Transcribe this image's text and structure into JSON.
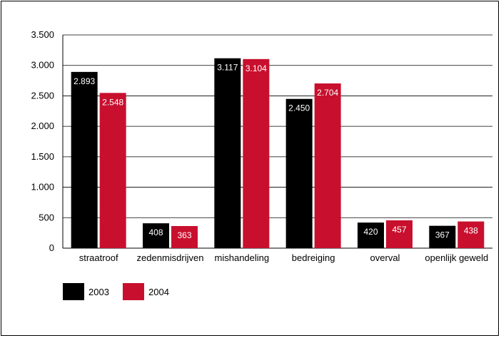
{
  "chart_data": {
    "type": "bar",
    "categories": [
      "straatroof",
      "zedenmisdrijven",
      "mishandeling",
      "bedreiging",
      "overval",
      "openlijk geweld"
    ],
    "series": [
      {
        "name": "2003",
        "values": [
          2893,
          408,
          3117,
          2450,
          420,
          367
        ],
        "labels": [
          "2.893",
          "408",
          "3.117",
          "2.450",
          "420",
          "367"
        ],
        "color": "#000000"
      },
      {
        "name": "2004",
        "values": [
          2548,
          363,
          3104,
          2704,
          457,
          438
        ],
        "labels": [
          "2.548",
          "363",
          "3.104",
          "2.704",
          "457",
          "438"
        ],
        "color": "#c8102e"
      }
    ],
    "yticks": [
      0,
      500,
      1000,
      1500,
      2000,
      2500,
      3000,
      3500
    ],
    "ytick_labels": [
      "0",
      "500",
      "1.000",
      "1.500",
      "2.000",
      "2.500",
      "3.000",
      "3.500"
    ],
    "ylim": [
      0,
      3500
    ],
    "grid": true,
    "legend": "bottom-left",
    "title": "",
    "xlabel": "",
    "ylabel": ""
  }
}
